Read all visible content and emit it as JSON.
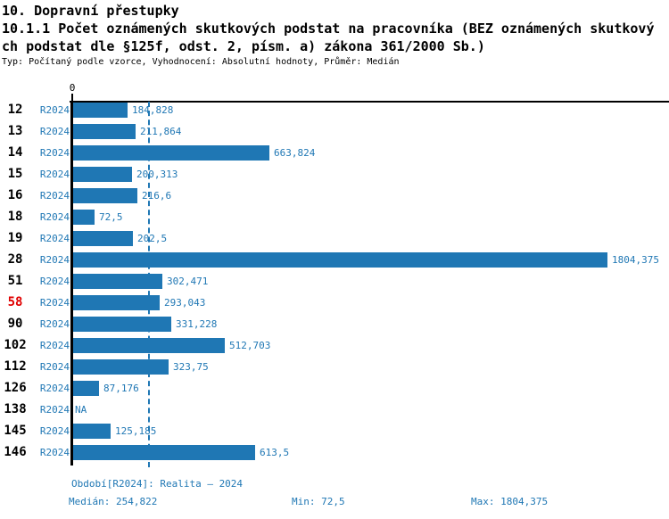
{
  "header": {
    "title": "10. Dopravní přestupky",
    "subtitle_lines": [
      "10.1.1 Počet oznámených skutkových podstat na pracovníka (BEZ oznámených skutkový",
      "ch podstat dle §125f, odst. 2, písm. a) zákona 361/2000 Sb.)"
    ],
    "meta": "Typ: Počítaný podle vzorce, Vyhodnocení: Absolutní hodnoty, Průměr: Medián"
  },
  "chart_data": {
    "type": "bar",
    "orientation": "horizontal",
    "title": "10.1.1 Počet oznámených skutkových podstat na pracovníka (BEZ oznámených skutkových podstat dle §125f, odst. 2, písm. a) zákona 361/2000 Sb.)",
    "zero_tick_label": "0",
    "xlim": [
      0,
      1804.375
    ],
    "xmax": 1804.375,
    "median": 254.822,
    "series_label": "R2024",
    "highlighted_category": "58",
    "rows": [
      {
        "category": "12",
        "period": "R2024",
        "value": 184.828,
        "label": "184,828",
        "highlight": false
      },
      {
        "category": "13",
        "period": "R2024",
        "value": 211.864,
        "label": "211,864",
        "highlight": false
      },
      {
        "category": "14",
        "period": "R2024",
        "value": 663.824,
        "label": "663,824",
        "highlight": false
      },
      {
        "category": "15",
        "period": "R2024",
        "value": 200.313,
        "label": "200,313",
        "highlight": false
      },
      {
        "category": "16",
        "period": "R2024",
        "value": 216.6,
        "label": "216,6",
        "highlight": false
      },
      {
        "category": "18",
        "period": "R2024",
        "value": 72.5,
        "label": "72,5",
        "highlight": false
      },
      {
        "category": "19",
        "period": "R2024",
        "value": 202.5,
        "label": "202,5",
        "highlight": false
      },
      {
        "category": "28",
        "period": "R2024",
        "value": 1804.375,
        "label": "1804,375",
        "highlight": false
      },
      {
        "category": "51",
        "period": "R2024",
        "value": 302.471,
        "label": "302,471",
        "highlight": false
      },
      {
        "category": "58",
        "period": "R2024",
        "value": 293.043,
        "label": "293,043",
        "highlight": true
      },
      {
        "category": "90",
        "period": "R2024",
        "value": 331.228,
        "label": "331,228",
        "highlight": false
      },
      {
        "category": "102",
        "period": "R2024",
        "value": 512.703,
        "label": "512,703",
        "highlight": false
      },
      {
        "category": "112",
        "period": "R2024",
        "value": 323.75,
        "label": "323,75",
        "highlight": false
      },
      {
        "category": "126",
        "period": "R2024",
        "value": 87.176,
        "label": "87,176",
        "highlight": false
      },
      {
        "category": "138",
        "period": "R2024",
        "value": null,
        "label": "NA",
        "highlight": false
      },
      {
        "category": "145",
        "period": "R2024",
        "value": 125.185,
        "label": "125,185",
        "highlight": false
      },
      {
        "category": "146",
        "period": "R2024",
        "value": 613.5,
        "label": "613,5",
        "highlight": false
      }
    ]
  },
  "footer": {
    "period_line": "Období[R2024]: Realita – 2024",
    "median": "Medián: 254,822",
    "min": "Min: 72,5",
    "max": "Max: 1804,375"
  },
  "colors": {
    "bar": "#1f77b4",
    "text_blue": "#1f77b4",
    "highlight_red": "#e00000",
    "axis_black": "#000000"
  }
}
